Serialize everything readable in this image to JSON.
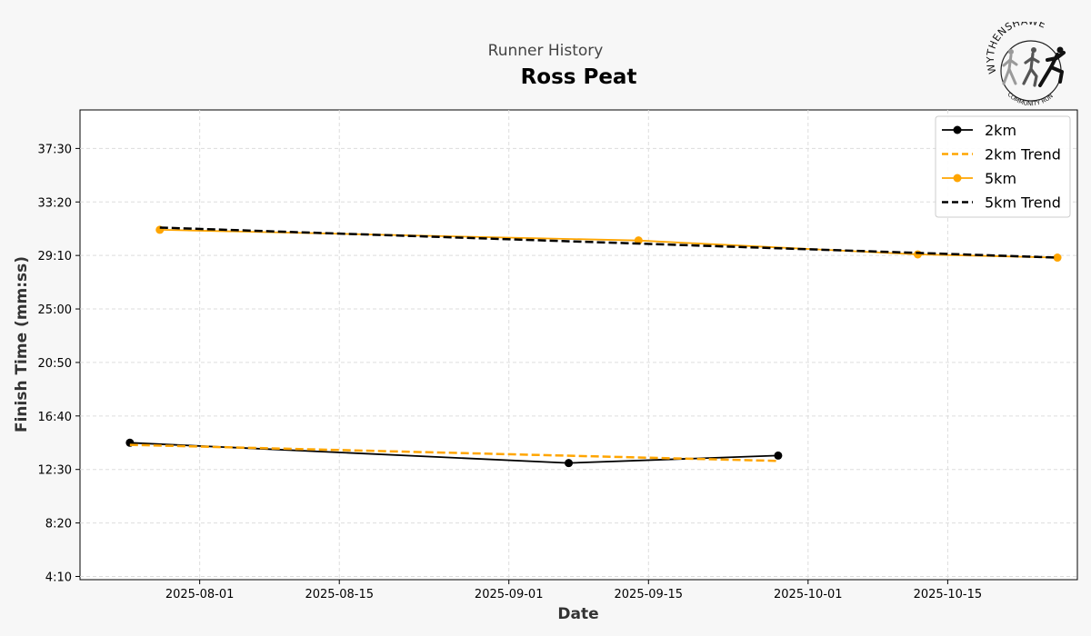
{
  "chart_data": {
    "type": "line",
    "subtitle": "Runner History",
    "title": "Ross Peat",
    "xlabel": "Date",
    "ylabel": "Finish Time (mm:ss)",
    "x_ticks": [
      "2025-08-01",
      "2025-08-15",
      "2025-09-01",
      "2025-09-15",
      "2025-10-01",
      "2025-10-15"
    ],
    "y_ticks": [
      "4:10",
      "8:20",
      "12:30",
      "16:40",
      "20:50",
      "25:00",
      "29:10",
      "33:20",
      "37:30"
    ],
    "xlim": [
      "2025-07-20",
      "2025-10-28"
    ],
    "ylim": [
      "3:55",
      "40:30"
    ],
    "grid": true,
    "legend_position": "top-right",
    "series": [
      {
        "name": "2km",
        "style": "solid-marker",
        "color": "#000000",
        "points": [
          {
            "date": "2025-07-25",
            "time": "14:35"
          },
          {
            "date": "2025-09-07",
            "time": "13:00"
          },
          {
            "date": "2025-09-28",
            "time": "13:35"
          }
        ]
      },
      {
        "name": "2km Trend",
        "style": "dashed",
        "color": "#FFA500",
        "points": [
          {
            "date": "2025-07-25",
            "time": "14:25"
          },
          {
            "date": "2025-09-28",
            "time": "13:10"
          }
        ]
      },
      {
        "name": "5km",
        "style": "solid-marker",
        "color": "#FFA500",
        "points": [
          {
            "date": "2025-07-28",
            "time": "31:10"
          },
          {
            "date": "2025-09-14",
            "time": "30:20"
          },
          {
            "date": "2025-10-12",
            "time": "29:15"
          },
          {
            "date": "2025-10-26",
            "time": "29:00"
          }
        ]
      },
      {
        "name": "5km Trend",
        "style": "dashed",
        "color": "#000000",
        "points": [
          {
            "date": "2025-07-28",
            "time": "31:20"
          },
          {
            "date": "2025-10-26",
            "time": "29:00"
          }
        ]
      }
    ]
  },
  "logo": {
    "icon": "runners-logo-icon",
    "top_text": "WYTHENSHAWE",
    "bottom_text": "COMMUNITY RUN",
    "colors": [
      "#9a9a9a",
      "#555555",
      "#111111"
    ]
  }
}
